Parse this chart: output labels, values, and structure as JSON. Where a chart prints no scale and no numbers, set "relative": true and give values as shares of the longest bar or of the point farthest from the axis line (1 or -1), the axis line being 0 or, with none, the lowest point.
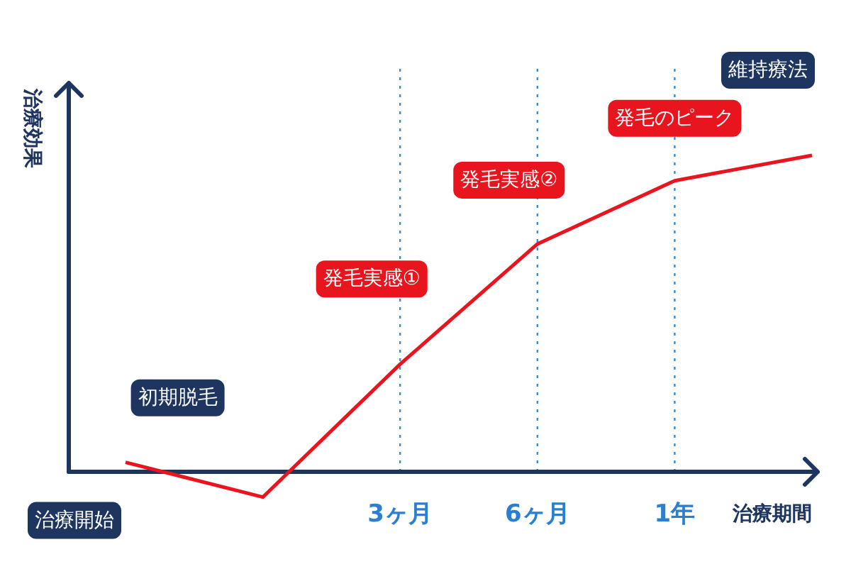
{
  "chart_data": {
    "type": "line",
    "relative": true,
    "xlabel": "治療期間",
    "ylabel": "治療効果",
    "categories": [
      null,
      null,
      "3ヶ月",
      "6ヶ月",
      "1年",
      null
    ],
    "series": [
      {
        "color": "#e8141e",
        "values": [
          0.03,
          -0.08,
          0.34,
          0.72,
          0.92,
          1.0
        ]
      }
    ],
    "grid": "x",
    "marker": "none",
    "line_style": "solid",
    "annotations": [
      "治療開始",
      "初期脱毛",
      "発毛実感①",
      "発毛実感②",
      "発毛のピーク",
      "維持療法"
    ]
  }
}
